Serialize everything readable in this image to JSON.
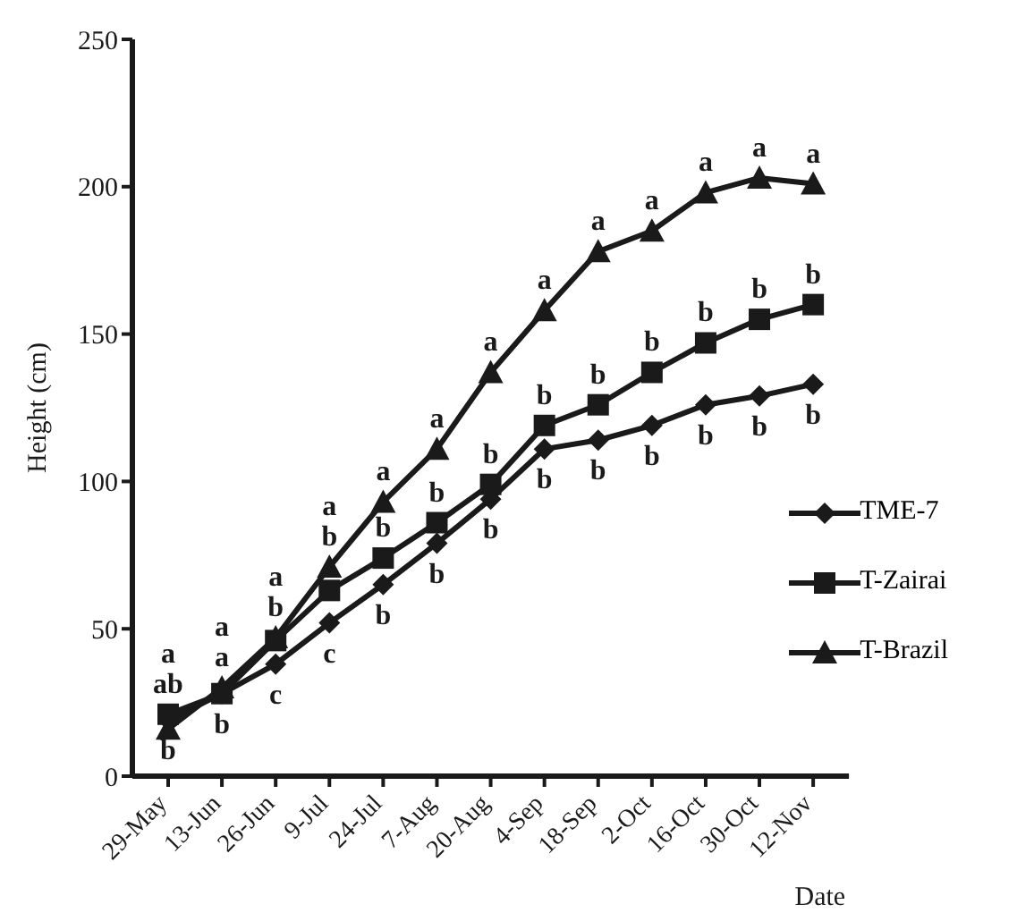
{
  "chart_data": {
    "type": "line",
    "xlabel": "Date",
    "ylabel": "Height  (cm)",
    "categories": [
      "29-May",
      "13-Jun",
      "26-Jun",
      "9-Jul",
      "24-Jul",
      "7-Aug",
      "20-Aug",
      "4-Sep",
      "18-Sep",
      "2-Oct",
      "16-Oct",
      "30-Oct",
      "12-Nov"
    ],
    "series": [
      {
        "name": "TME-7",
        "color": "#1a1a1a",
        "marker": "diamond",
        "values": [
          19,
          28,
          38,
          52,
          65,
          79,
          94,
          111,
          114,
          119,
          126,
          129,
          133
        ]
      },
      {
        "name": "T-Zairai",
        "color": "#1a1a1a",
        "marker": "square",
        "values": [
          21,
          28,
          46,
          63,
          74,
          86,
          99,
          119,
          126,
          137,
          147,
          155,
          160
        ]
      },
      {
        "name": "T-Brazil",
        "color": "#1a1a1a",
        "marker": "triangle",
        "values": [
          16,
          30,
          47,
          71,
          93,
          111,
          137,
          158,
          178,
          185,
          198,
          203,
          201
        ]
      }
    ],
    "ylim": [
      0,
      250
    ],
    "yticks": [
      0,
      50,
      100,
      150,
      200,
      250
    ],
    "grid": false,
    "legend": "right",
    "line_style": "solid",
    "annotations": [
      {
        "text": "a",
        "x": "29-May",
        "y": 16
      },
      {
        "text": "ab",
        "x": "29-May",
        "y": 21
      },
      {
        "text": "b",
        "x": "29-May",
        "y": 19
      },
      {
        "text": "a",
        "x": "13-Jun",
        "y": 30
      },
      {
        "text": "a",
        "x": "13-Jun",
        "y": 28
      },
      {
        "text": "b",
        "x": "13-Jun",
        "y": 28
      },
      {
        "text": "a",
        "x": "26-Jun",
        "y": 47
      },
      {
        "text": "b",
        "x": "26-Jun",
        "y": 46
      },
      {
        "text": "c",
        "x": "26-Jun",
        "y": 38
      },
      {
        "text": "a",
        "x": "9-Jul",
        "y": 71
      },
      {
        "text": "b",
        "x": "9-Jul",
        "y": 63
      },
      {
        "text": "c",
        "x": "9-Jul",
        "y": 52
      },
      {
        "text": "a",
        "x": "24-Jul",
        "y": 93
      },
      {
        "text": "b",
        "x": "24-Jul",
        "y": 74
      },
      {
        "text": "b",
        "x": "24-Jul",
        "y": 65
      },
      {
        "text": "a",
        "x": "7-Aug",
        "y": 111
      },
      {
        "text": "b",
        "x": "7-Aug",
        "y": 86
      },
      {
        "text": "b",
        "x": "7-Aug",
        "y": 79
      },
      {
        "text": "a",
        "x": "20-Aug",
        "y": 137
      },
      {
        "text": "b",
        "x": "20-Aug",
        "y": 99
      },
      {
        "text": "b",
        "x": "20-Aug",
        "y": 94
      },
      {
        "text": "a",
        "x": "4-Sep",
        "y": 158
      },
      {
        "text": "b",
        "x": "4-Sep",
        "y": 119
      },
      {
        "text": "b",
        "x": "4-Sep",
        "y": 111
      },
      {
        "text": "a",
        "x": "18-Sep",
        "y": 178
      },
      {
        "text": "b",
        "x": "18-Sep",
        "y": 126
      },
      {
        "text": "b",
        "x": "18-Sep",
        "y": 114
      },
      {
        "text": "a",
        "x": "2-Oct",
        "y": 185
      },
      {
        "text": "b",
        "x": "2-Oct",
        "y": 137
      },
      {
        "text": "b",
        "x": "2-Oct",
        "y": 119
      },
      {
        "text": "a",
        "x": "16-Oct",
        "y": 198
      },
      {
        "text": "b",
        "x": "16-Oct",
        "y": 147
      },
      {
        "text": "b",
        "x": "16-Oct",
        "y": 126
      },
      {
        "text": "a",
        "x": "30-Oct",
        "y": 203
      },
      {
        "text": "b",
        "x": "30-Oct",
        "y": 155
      },
      {
        "text": "b",
        "x": "30-Oct",
        "y": 129
      },
      {
        "text": "a",
        "x": "12-Nov",
        "y": 201
      },
      {
        "text": "b",
        "x": "12-Nov",
        "y": 160
      },
      {
        "text": "b",
        "x": "12-Nov",
        "y": 133
      }
    ]
  }
}
